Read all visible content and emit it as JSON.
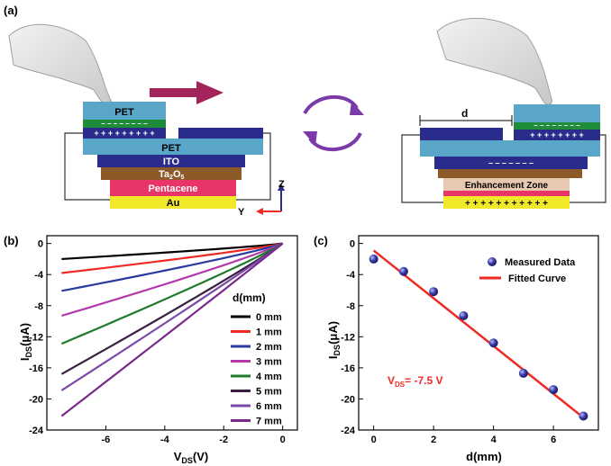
{
  "panel_labels": {
    "a": "(a)",
    "b": "(b)",
    "c": "(c)"
  },
  "schematic": {
    "layers_left": {
      "pet_top": "PET",
      "pet_bottom": "PET",
      "ito": "ITO",
      "ta2o5_main": "Ta",
      "ta2o5_sub1": "2",
      "ta2o5_mid": "O",
      "ta2o5_sub2": "5",
      "pentacene": "Pentacene",
      "au": "Au"
    },
    "axes": {
      "z": "Z",
      "y": "Y"
    },
    "right": {
      "distance_label": "d",
      "zone_label": "Enhancement Zone"
    },
    "colors": {
      "pet": "#5aa6c8",
      "ito": "#2a2c8c",
      "ta2o5": "#8c5a28",
      "pentacene": "#e83466",
      "au": "#f2e82a",
      "arrow": "#a3245a",
      "cycle": "#7a3aa8"
    }
  },
  "chart_b": {
    "ylabel_main": "I",
    "ylabel_sub": "DS",
    "ylabel_unit": "(μA)",
    "xlabel_main": "V",
    "xlabel_sub": "DS",
    "xlabel_unit": "(V)",
    "legend_title": "d(mm)",
    "x_ticks": [
      "-6",
      "-4",
      "-2",
      "0"
    ],
    "y_ticks": [
      "0",
      "-4",
      "-8",
      "-12",
      "-16",
      "-20",
      "-24"
    ]
  },
  "chart_c": {
    "ylabel_main": "I",
    "ylabel_sub": "DS",
    "ylabel_unit": "(μA)",
    "xlabel": "d(mm)",
    "x_ticks": [
      "0",
      "2",
      "4",
      "6"
    ],
    "y_ticks": [
      "0",
      "-4",
      "-8",
      "-12",
      "-16",
      "-20",
      "-24"
    ],
    "legend_measured": "Measured Data",
    "legend_fitted": "Fitted Curve",
    "annotation_main": "V",
    "annotation_sub": "DS",
    "annotation_value": "= -7.5 V"
  },
  "chart_data": [
    {
      "type": "line",
      "x": [
        -7.5,
        0
      ],
      "xlim": [
        -8,
        0.5
      ],
      "ylim": [
        -24,
        1
      ],
      "series": [
        {
          "name": "0 mm",
          "color": "#000000",
          "end_value": -2.0
        },
        {
          "name": "1 mm",
          "color": "#ee2a24",
          "end_value": -3.8
        },
        {
          "name": "2 mm",
          "color": "#2a3aa0",
          "end_value": -6.1
        },
        {
          "name": "3 mm",
          "color": "#b23aa8",
          "end_value": -9.3
        },
        {
          "name": "4 mm",
          "color": "#1f7a2a",
          "end_value": -12.9
        },
        {
          "name": "5 mm",
          "color": "#3a2040",
          "end_value": -16.8
        },
        {
          "name": "6 mm",
          "color": "#7a4aa8",
          "end_value": -18.9
        },
        {
          "name": "7 mm",
          "color": "#7a2a8a",
          "end_value": -22.2
        }
      ]
    },
    {
      "type": "scatter",
      "xlim": [
        -0.5,
        7.5
      ],
      "ylim": [
        -24,
        1
      ],
      "measured": {
        "x": [
          0,
          1,
          2,
          3,
          4,
          5,
          6,
          7
        ],
        "y": [
          -2.0,
          -3.6,
          -6.2,
          -9.3,
          -12.8,
          -16.7,
          -18.8,
          -22.2
        ]
      },
      "fit": {
        "x": [
          0,
          7
        ],
        "y": [
          -0.9,
          -22.4
        ]
      },
      "colors": {
        "measured": "#3a3aa8",
        "fit": "#ee2a24"
      }
    }
  ]
}
